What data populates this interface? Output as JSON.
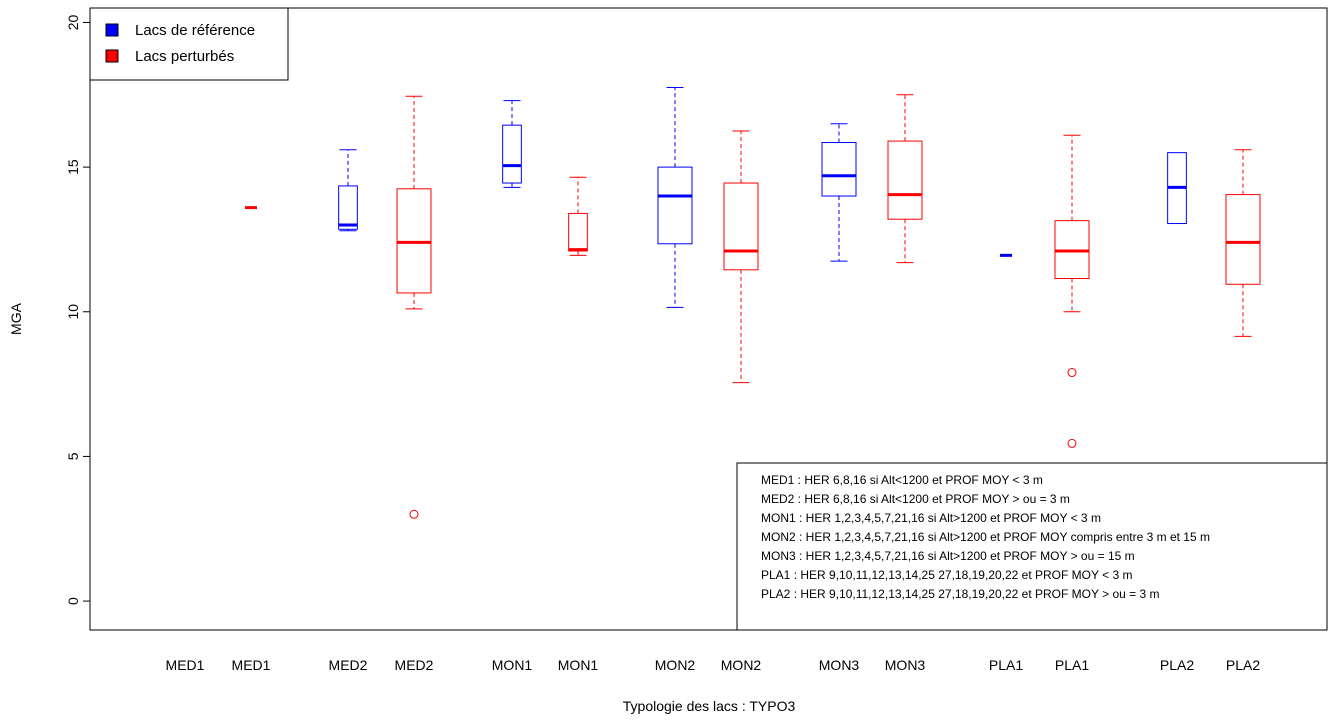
{
  "chart_data": {
    "type": "boxplot",
    "title": "",
    "xlabel": "Typologie des lacs : TYPO3",
    "ylabel": "MGA",
    "ylim": [
      -1,
      20.5
    ],
    "yticks": [
      0,
      5,
      10,
      15,
      20
    ],
    "grid": false,
    "colors": {
      "reference": "#0000ff",
      "perturbed": "#ff0000"
    },
    "legend": {
      "placement": "top-left",
      "entries": [
        {
          "name": "Lacs de référence",
          "color": "#0000ff"
        },
        {
          "name": "Lacs perturbés",
          "color": "#ff0000"
        }
      ]
    },
    "boxes": [
      {
        "label": "MED1",
        "group": "reference",
        "color": "#0000ff",
        "min": null,
        "q1": null,
        "median": null,
        "q3": null,
        "max": null,
        "outliers": []
      },
      {
        "label": "MED1",
        "group": "perturbed",
        "color": "#ff0000",
        "min": 13.6,
        "q1": 13.6,
        "median": 13.6,
        "q3": 13.6,
        "max": 13.6,
        "outliers": []
      },
      {
        "label": "MED2",
        "group": "reference",
        "color": "#0000ff",
        "min": 12.8,
        "q1": 12.85,
        "median": 13.0,
        "q3": 14.35,
        "max": 15.6,
        "outliers": []
      },
      {
        "label": "MED2",
        "group": "perturbed",
        "color": "#ff0000",
        "min": 10.1,
        "q1": 10.65,
        "median": 12.4,
        "q3": 14.25,
        "max": 17.45,
        "outliers": [
          3.0
        ]
      },
      {
        "label": "MON1",
        "group": "reference",
        "color": "#0000ff",
        "min": 14.3,
        "q1": 14.45,
        "median": 15.05,
        "q3": 16.45,
        "max": 17.3,
        "outliers": []
      },
      {
        "label": "MON1",
        "group": "perturbed",
        "color": "#ff0000",
        "min": 11.95,
        "q1": 12.1,
        "median": 12.15,
        "q3": 13.4,
        "max": 14.65,
        "outliers": []
      },
      {
        "label": "MON2",
        "group": "reference",
        "color": "#0000ff",
        "min": 10.15,
        "q1": 12.35,
        "median": 14.0,
        "q3": 15.0,
        "max": 17.75,
        "outliers": []
      },
      {
        "label": "MON2",
        "group": "perturbed",
        "color": "#ff0000",
        "min": 7.55,
        "q1": 11.45,
        "median": 12.1,
        "q3": 14.45,
        "max": 16.25,
        "outliers": []
      },
      {
        "label": "MON3",
        "group": "reference",
        "color": "#0000ff",
        "min": 11.75,
        "q1": 14.0,
        "median": 14.7,
        "q3": 15.85,
        "max": 16.5,
        "outliers": []
      },
      {
        "label": "MON3",
        "group": "perturbed",
        "color": "#ff0000",
        "min": 11.7,
        "q1": 13.2,
        "median": 14.05,
        "q3": 15.9,
        "max": 17.5,
        "outliers": []
      },
      {
        "label": "PLA1",
        "group": "reference",
        "color": "#0000ff",
        "min": 11.95,
        "q1": 11.95,
        "median": 11.95,
        "q3": 11.95,
        "max": 11.95,
        "outliers": []
      },
      {
        "label": "PLA1",
        "group": "perturbed",
        "color": "#ff0000",
        "min": 10.0,
        "q1": 11.15,
        "median": 12.1,
        "q3": 13.15,
        "max": 16.1,
        "outliers": [
          7.9,
          5.45
        ]
      },
      {
        "label": "PLA2",
        "group": "reference",
        "color": "#0000ff",
        "min": 13.05,
        "q1": 13.05,
        "median": 14.3,
        "q3": 15.5,
        "max": 15.5,
        "outliers": []
      },
      {
        "label": "PLA2",
        "group": "perturbed",
        "color": "#ff0000",
        "min": 9.15,
        "q1": 10.95,
        "median": 12.4,
        "q3": 14.05,
        "max": 15.6,
        "outliers": []
      }
    ],
    "notes": [
      "MED1 : HER 6,8,16 si Alt<1200 et PROF MOY < 3 m",
      "MED2 : HER 6,8,16 si Alt<1200 et PROF MOY > ou = 3 m",
      "MON1 : HER 1,2,3,4,5,7,21,16 si Alt>1200 et PROF MOY < 3 m",
      "MON2 : HER 1,2,3,4,5,7,21,16 si Alt>1200 et PROF MOY compris entre 3 m et 15 m",
      "MON3 : HER 1,2,3,4,5,7,21,16 si Alt>1200 et PROF MOY > ou = 15 m",
      "PLA1 : HER 9,10,11,12,13,14,25 27,18,19,20,22 et PROF MOY < 3 m",
      "PLA2 : HER 9,10,11,12,13,14,25 27,18,19,20,22 et PROF MOY > ou = 3 m"
    ]
  }
}
